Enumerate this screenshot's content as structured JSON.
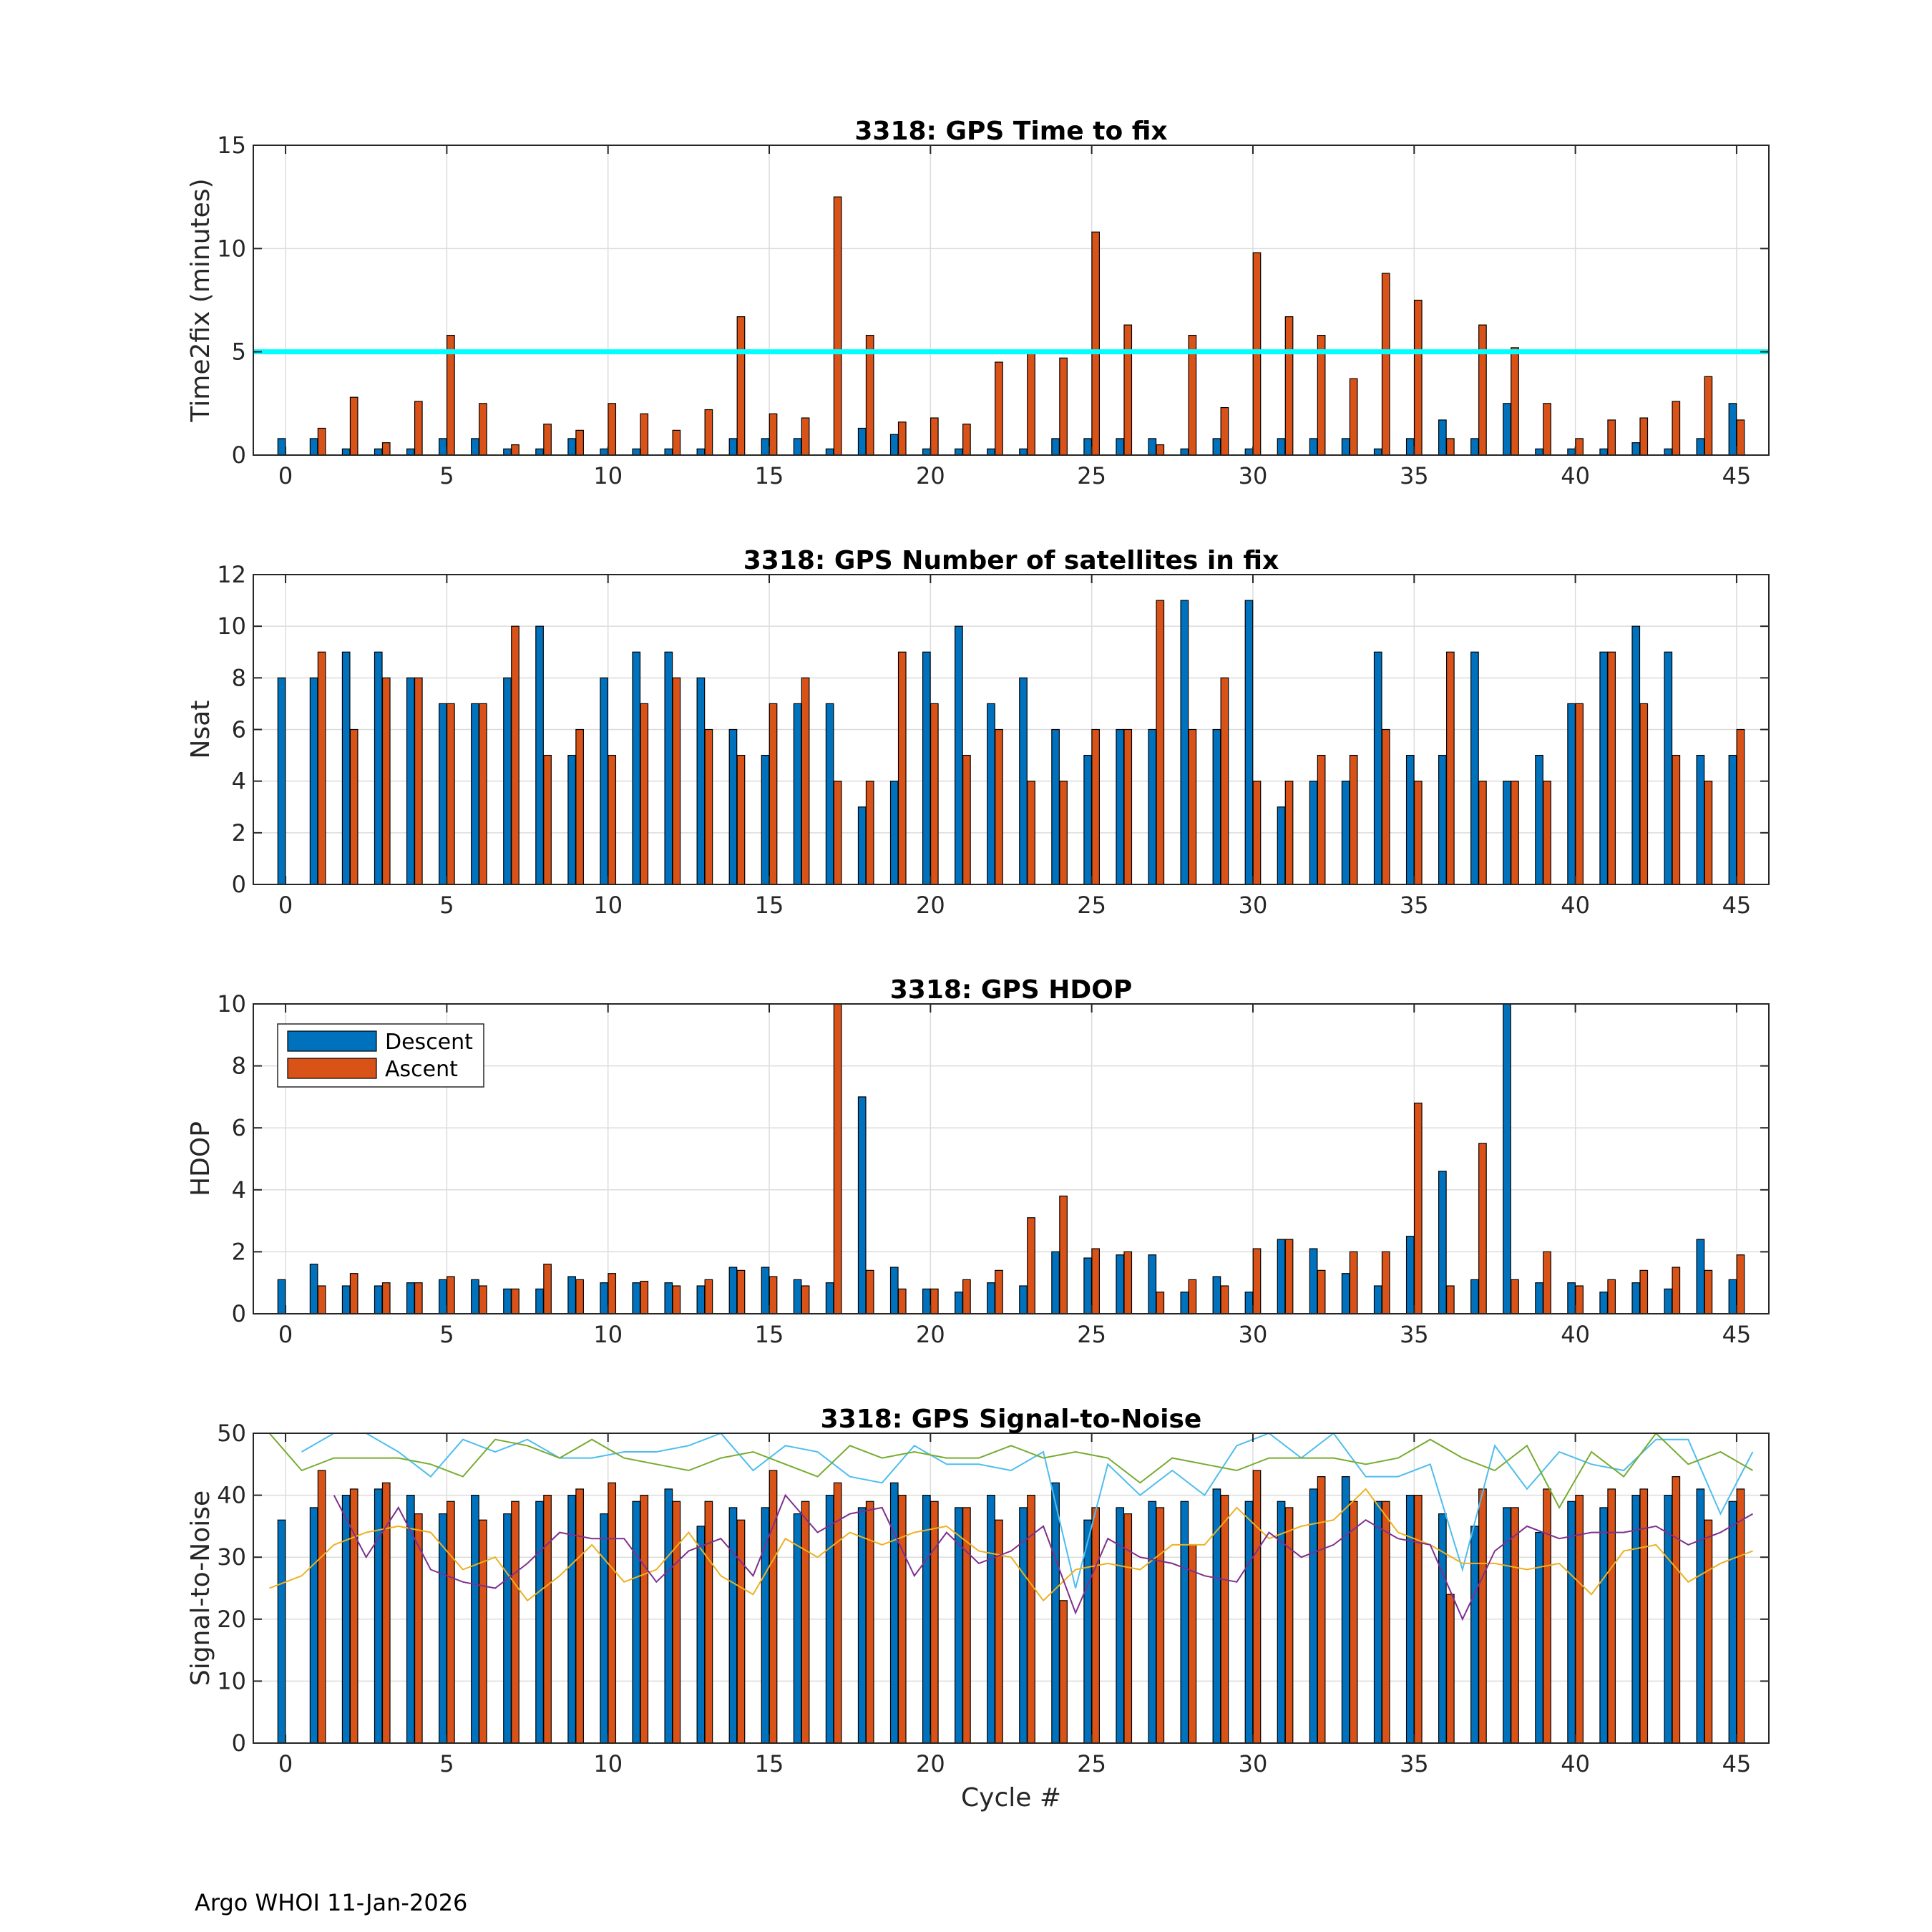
{
  "footer": "Argo WHOI 11-Jan-2026",
  "colors": {
    "descent": "#0072BD",
    "ascent": "#D95319",
    "threshold": "#00FFFF",
    "snr_lines": [
      "#4DBEEE",
      "#77AC30",
      "#EDB120",
      "#7E2F8E"
    ]
  },
  "chart_data": [
    {
      "type": "bar",
      "title": "3318: GPS Time to fix",
      "xlabel": "",
      "ylabel": "Time2fix (minutes)",
      "xlim": [
        -1,
        46
      ],
      "ylim": [
        0,
        15
      ],
      "xticks": [
        0,
        5,
        10,
        15,
        20,
        25,
        30,
        35,
        40,
        45
      ],
      "yticks": [
        0,
        5,
        10,
        15
      ],
      "threshold": 5,
      "series": [
        {
          "name": "Descent",
          "values": [
            0.8,
            0.8,
            0.3,
            0.3,
            0.3,
            0.8,
            0.8,
            0.3,
            0.3,
            0.8,
            0.3,
            0.3,
            0.3,
            0.3,
            0.8,
            0.8,
            0.8,
            0.3,
            1.3,
            1.0,
            0.3,
            0.3,
            0.3,
            0.3,
            0.8,
            0.8,
            0.8,
            0.8,
            0.3,
            0.8,
            0.3,
            0.8,
            0.8,
            0.8,
            0.3,
            0.8,
            1.7,
            0.8,
            2.5,
            0.3,
            0.3,
            0.3,
            0.6,
            0.3,
            0.8,
            2.5
          ]
        },
        {
          "name": "Ascent",
          "values": [
            null,
            1.3,
            2.8,
            0.6,
            2.6,
            5.8,
            2.5,
            0.5,
            1.5,
            1.2,
            2.5,
            2.0,
            1.2,
            2.2,
            6.7,
            2.0,
            1.8,
            12.5,
            5.8,
            1.6,
            1.8,
            1.5,
            4.5,
            5.0,
            4.7,
            10.8,
            6.3,
            0.5,
            5.8,
            2.3,
            9.8,
            6.7,
            5.8,
            3.7,
            8.8,
            7.5,
            0.8,
            6.3,
            5.2,
            2.5,
            0.8,
            1.7,
            1.8,
            2.6,
            3.8,
            1.7
          ]
        }
      ]
    },
    {
      "type": "bar",
      "title": "3318: GPS Number of satellites in fix",
      "xlabel": "",
      "ylabel": "Nsat",
      "xlim": [
        -1,
        46
      ],
      "ylim": [
        0,
        12
      ],
      "xticks": [
        0,
        5,
        10,
        15,
        20,
        25,
        30,
        35,
        40,
        45
      ],
      "yticks": [
        0,
        2,
        4,
        6,
        8,
        10,
        12
      ],
      "series": [
        {
          "name": "Descent",
          "values": [
            8,
            8,
            9,
            9,
            8,
            7,
            7,
            8,
            10,
            5,
            8,
            9,
            9,
            8,
            6,
            5,
            7,
            7,
            3,
            4,
            9,
            10,
            7,
            8,
            6,
            5,
            6,
            6,
            11,
            6,
            11,
            3,
            4,
            4,
            9,
            5,
            5,
            9,
            4,
            5,
            7,
            9,
            10,
            9,
            5,
            5
          ]
        },
        {
          "name": "Ascent",
          "values": [
            null,
            9,
            6,
            8,
            8,
            7,
            7,
            10,
            5,
            6,
            5,
            7,
            8,
            6,
            5,
            7,
            8,
            4,
            4,
            9,
            7,
            5,
            6,
            4,
            4,
            6,
            6,
            11,
            6,
            8,
            4,
            4,
            5,
            5,
            6,
            4,
            9,
            4,
            4,
            4,
            7,
            9,
            7,
            5,
            4,
            6
          ]
        }
      ]
    },
    {
      "type": "bar",
      "title": "3318: GPS HDOP",
      "xlabel": "",
      "ylabel": "HDOP",
      "xlim": [
        -1,
        46
      ],
      "ylim": [
        0,
        10
      ],
      "xticks": [
        0,
        5,
        10,
        15,
        20,
        25,
        30,
        35,
        40,
        45
      ],
      "yticks": [
        0,
        2,
        4,
        6,
        8,
        10
      ],
      "legend": [
        "Descent",
        "Ascent"
      ],
      "legend_position": "top-left",
      "series": [
        {
          "name": "Descent",
          "values": [
            1.1,
            1.6,
            0.9,
            0.9,
            1.0,
            1.1,
            1.1,
            0.8,
            0.8,
            1.2,
            1.0,
            1.0,
            1.0,
            0.9,
            1.5,
            1.5,
            1.1,
            1.0,
            7.0,
            1.5,
            0.8,
            0.7,
            1.0,
            0.9,
            2.0,
            1.8,
            1.9,
            1.9,
            0.7,
            1.2,
            0.7,
            2.4,
            2.1,
            1.3,
            0.9,
            2.5,
            4.6,
            1.1,
            10,
            1.0,
            1.0,
            0.7,
            1.0,
            0.8,
            2.4,
            1.1
          ]
        },
        {
          "name": "Ascent",
          "values": [
            null,
            0.9,
            1.3,
            1.0,
            1.0,
            1.2,
            0.9,
            0.8,
            1.6,
            1.1,
            1.3,
            1.05,
            0.9,
            1.1,
            1.4,
            1.2,
            0.9,
            10,
            1.4,
            0.8,
            0.8,
            1.1,
            1.4,
            3.1,
            3.8,
            2.1,
            2.0,
            0.7,
            1.1,
            0.9,
            2.1,
            2.4,
            1.4,
            2.0,
            2.0,
            6.8,
            0.9,
            5.5,
            1.1,
            2.0,
            0.9,
            1.1,
            1.4,
            1.5,
            1.4,
            1.9
          ]
        }
      ]
    },
    {
      "type": "bar",
      "title": "3318: GPS Signal-to-Noise",
      "xlabel": "Cycle #",
      "ylabel": "Signal-to-Noise",
      "xlim": [
        -1,
        46
      ],
      "ylim": [
        0,
        50
      ],
      "xticks": [
        0,
        5,
        10,
        15,
        20,
        25,
        30,
        35,
        40,
        45
      ],
      "yticks": [
        0,
        10,
        20,
        30,
        40,
        50
      ],
      "series": [
        {
          "name": "Descent",
          "values": [
            36,
            38,
            40,
            41,
            40,
            37,
            40,
            37,
            39,
            40,
            37,
            39,
            41,
            35,
            38,
            38,
            37,
            40,
            38,
            42,
            40,
            38,
            40,
            38,
            42,
            36,
            38,
            39,
            39,
            41,
            39,
            39,
            41,
            43,
            39,
            40,
            37,
            35,
            38,
            34,
            39,
            38,
            40,
            40,
            41,
            39
          ]
        },
        {
          "name": "Ascent",
          "values": [
            null,
            44,
            41,
            42,
            37,
            39,
            36,
            39,
            40,
            41,
            42,
            40,
            39,
            39,
            36,
            44,
            39,
            42,
            39,
            40,
            39,
            38,
            36,
            40,
            23,
            38,
            37,
            38,
            32,
            40,
            44,
            38,
            43,
            39,
            39,
            40,
            24,
            41,
            38,
            41,
            40,
            41,
            41,
            43,
            36,
            41
          ]
        }
      ],
      "lines": [
        {
          "name": "line-cyan",
          "values": [
            null,
            47,
            50,
            50,
            47,
            43,
            49,
            47,
            49,
            46,
            46,
            47,
            47,
            48,
            50,
            44,
            48,
            47,
            43,
            42,
            48,
            45,
            45,
            44,
            47,
            25,
            45,
            40,
            44,
            40,
            48,
            50,
            46,
            50,
            43,
            43,
            45,
            28,
            48,
            41,
            47,
            45,
            44,
            49,
            49,
            37,
            47
          ]
        },
        {
          "name": "line-green",
          "values": [
            50,
            44,
            46,
            46,
            46,
            45,
            43,
            49,
            48,
            46,
            49,
            46,
            45,
            44,
            46,
            47,
            45,
            43,
            48,
            46,
            47,
            46,
            46,
            48,
            46,
            47,
            46,
            42,
            46,
            45,
            44,
            46,
            46,
            46,
            45,
            46,
            49,
            46,
            44,
            48,
            38,
            47,
            43,
            50,
            45,
            47,
            44
          ]
        },
        {
          "name": "line-yellow",
          "values": [
            25,
            27,
            32,
            34,
            35,
            34,
            28,
            30,
            23,
            27,
            32,
            26,
            28,
            34,
            27,
            24,
            33,
            30,
            34,
            32,
            34,
            35,
            31,
            30,
            23,
            28,
            29,
            28,
            32,
            32,
            38,
            33,
            35,
            36,
            41,
            34,
            32,
            29,
            29,
            28,
            29,
            24,
            31,
            32,
            26,
            29,
            31
          ]
        },
        {
          "name": "line-purple",
          "values": [
            null,
            null,
            40,
            30,
            38,
            28,
            26,
            25,
            29,
            34,
            33,
            33,
            26,
            31,
            33,
            27,
            40,
            34,
            37,
            38,
            27,
            34,
            29,
            31,
            35,
            21,
            33,
            30,
            29,
            27,
            26,
            34,
            30,
            32,
            36,
            33,
            32,
            20,
            31,
            35,
            33,
            34,
            34,
            35,
            32,
            34,
            37
          ]
        }
      ]
    }
  ]
}
